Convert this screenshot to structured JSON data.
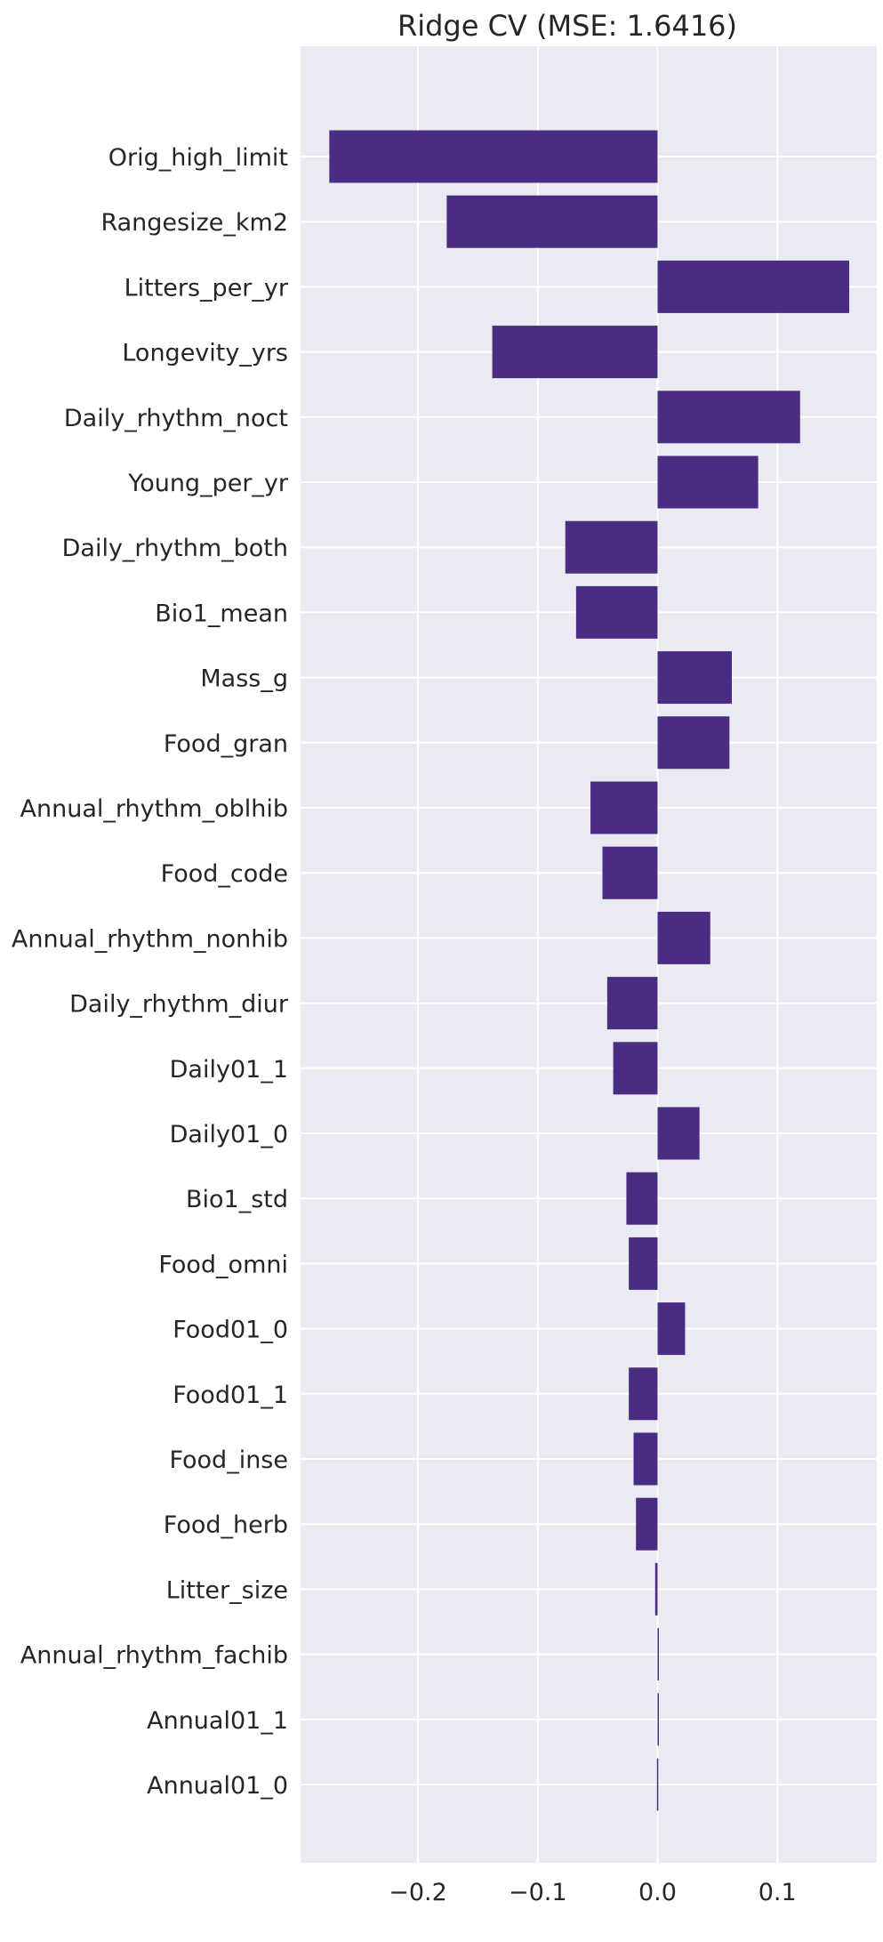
{
  "chart_data": {
    "type": "bar",
    "orientation": "horizontal",
    "title": "Ridge CV (MSE: 1.6416)",
    "xlabel": "",
    "ylabel": "",
    "xlim": [
      -0.298,
      0.183
    ],
    "xticks": [
      -0.2,
      -0.1,
      0.0,
      0.1
    ],
    "xtick_labels": [
      "−0.2",
      "−0.1",
      "0.0",
      "0.1"
    ],
    "grid": true,
    "bar_color": "#4b2c83",
    "background_color": "#eaeaf2",
    "grid_color": "#ffffff",
    "categories": [
      "Orig_high_limit",
      "Rangesize_km2",
      "Litters_per_yr",
      "Longevity_yrs",
      "Daily_rhythm_noct",
      "Young_per_yr",
      "Daily_rhythm_both",
      "Bio1_mean",
      "Mass_g",
      "Food_gran",
      "Annual_rhythm_oblhib",
      "Food_code",
      "Annual_rhythm_nonhib",
      "Daily_rhythm_diur",
      "Daily01_1",
      "Daily01_0",
      "Bio1_std",
      "Food_omni",
      "Food01_0",
      "Food01_1",
      "Food_inse",
      "Food_herb",
      "Litter_size",
      "Annual_rhythm_fachib",
      "Annual01_1",
      "Annual01_0"
    ],
    "values": [
      -0.274,
      -0.176,
      0.16,
      -0.138,
      0.119,
      0.084,
      -0.077,
      -0.068,
      0.062,
      0.06,
      -0.056,
      -0.046,
      0.044,
      -0.042,
      -0.037,
      0.035,
      -0.026,
      -0.024,
      0.023,
      -0.024,
      -0.02,
      -0.018,
      -0.002,
      0.001,
      0.0005,
      -0.0005
    ]
  }
}
